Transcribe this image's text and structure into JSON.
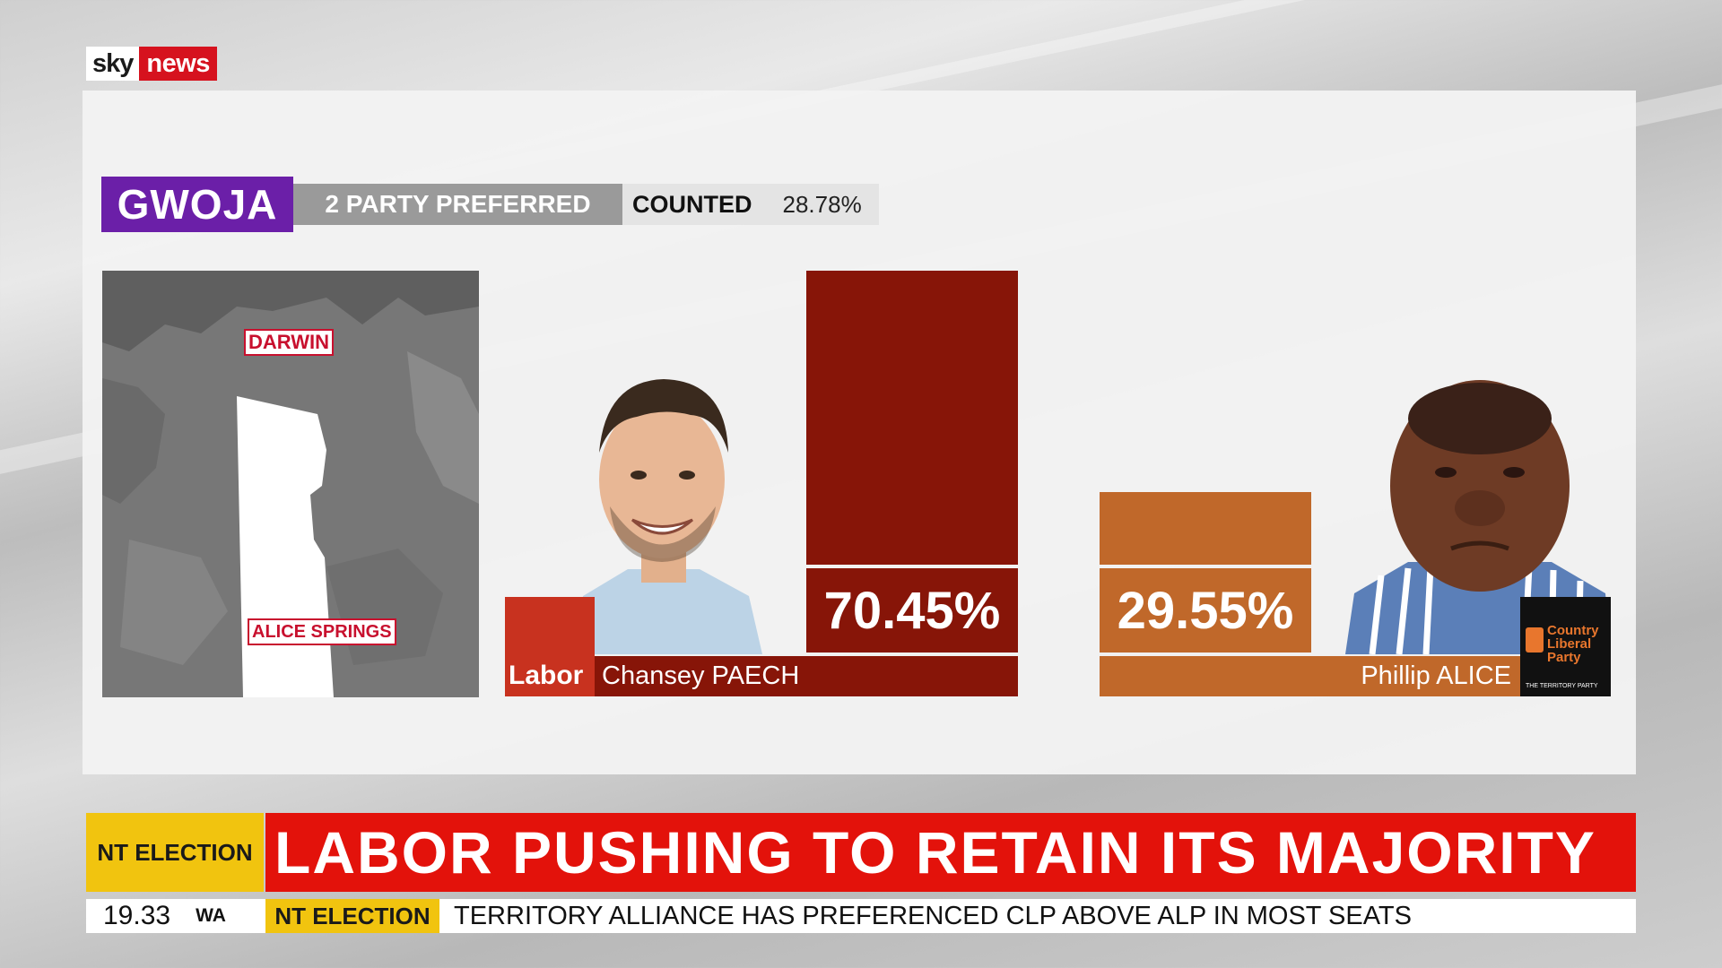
{
  "logo": {
    "part1": "sky",
    "part2": "news"
  },
  "graphic": {
    "seat": "GWOJA",
    "mode": "2 PARTY PREFERRED",
    "counted_label": "COUNTED",
    "counted_value": "28.78%"
  },
  "map": {
    "labels": [
      "DARWIN",
      "ALICE SPRINGS"
    ]
  },
  "candidates": [
    {
      "name": "Chansey PAECH",
      "party_logo_text": "Labor",
      "percent_label": "70.45%",
      "color": "#871508",
      "accent": "#c8321f",
      "photo": "candidate-photo-paech"
    },
    {
      "name": "Phillip ALICE",
      "party_logo_text": "Country Liberal Party",
      "party_logo_sub": "THE TERRITORY PARTY",
      "percent_label": "29.55%",
      "color": "#c0682a",
      "accent": "#e8762d",
      "photo": "candidate-photo-alice"
    }
  ],
  "chart_data": {
    "type": "bar",
    "title": "GWOJA",
    "subtitle": "2 PARTY PREFERRED",
    "categories": [
      "Chansey PAECH",
      "Phillip ALICE"
    ],
    "values": [
      70.45,
      29.55
    ],
    "colors": [
      "#871508",
      "#c0682a"
    ],
    "ylim": [
      0,
      70.45
    ],
    "grid": false,
    "legend": "none"
  },
  "ticker": {
    "tag": "NT ELECTION",
    "headline": "LABOR PUSHING TO RETAIN ITS MAJORITY",
    "time": "19.33",
    "zone": "WA",
    "crawl_tag": "NT ELECTION",
    "crawl_text": "TERRITORY ALLIANCE HAS PREFERENCED CLP ABOVE ALP IN MOST SEATS"
  }
}
